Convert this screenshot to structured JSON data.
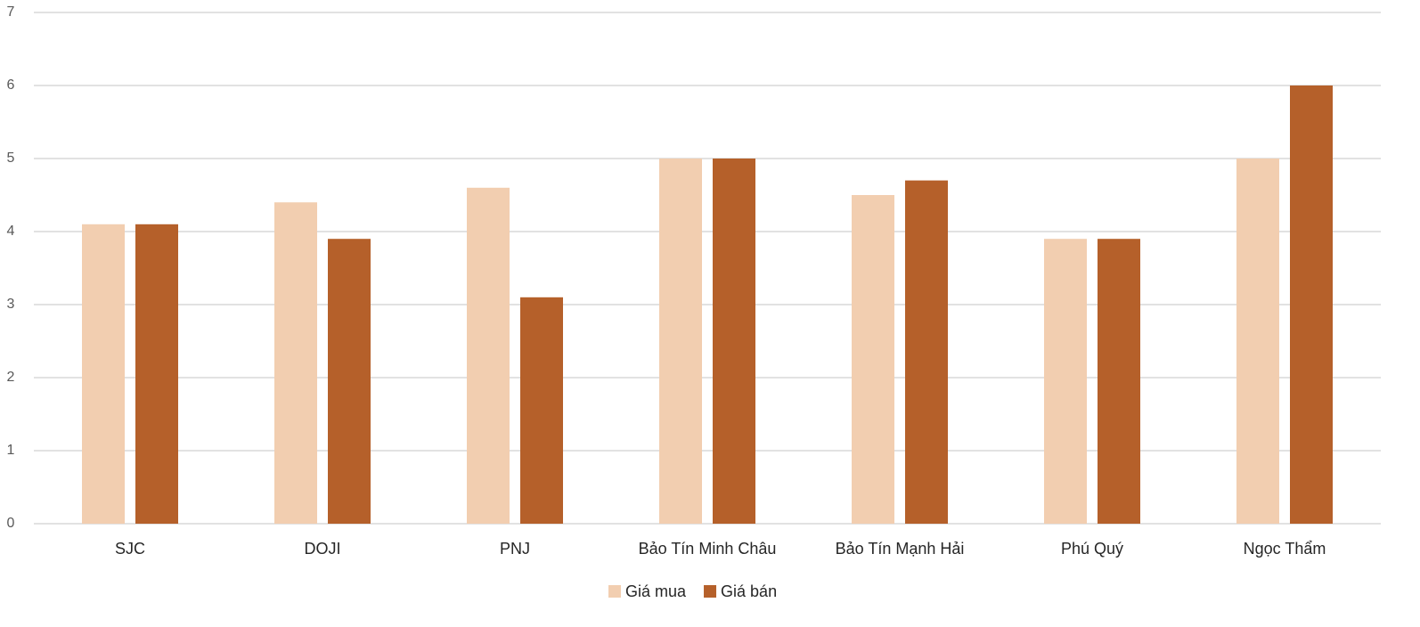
{
  "chart_data": {
    "type": "bar",
    "categories": [
      "SJC",
      "DOJI",
      "PNJ",
      "Bảo Tín Minh Châu",
      "Bảo Tín Mạnh Hải",
      "Phú Quý",
      "Ngọc Thẩm"
    ],
    "series": [
      {
        "name": "Giá mua",
        "color": "#F2CEB0",
        "values": [
          4.1,
          4.4,
          4.6,
          5,
          4.5,
          3.9,
          5
        ]
      },
      {
        "name": "Giá bán",
        "color": "#B5602A",
        "values": [
          4.1,
          3.9,
          3.1,
          5,
          4.7,
          3.9,
          6
        ]
      }
    ],
    "ylim": [
      0,
      7
    ],
    "yticks": [
      0,
      1,
      2,
      3,
      4,
      5,
      6,
      7
    ],
    "grid": true,
    "legend": "bottom"
  }
}
